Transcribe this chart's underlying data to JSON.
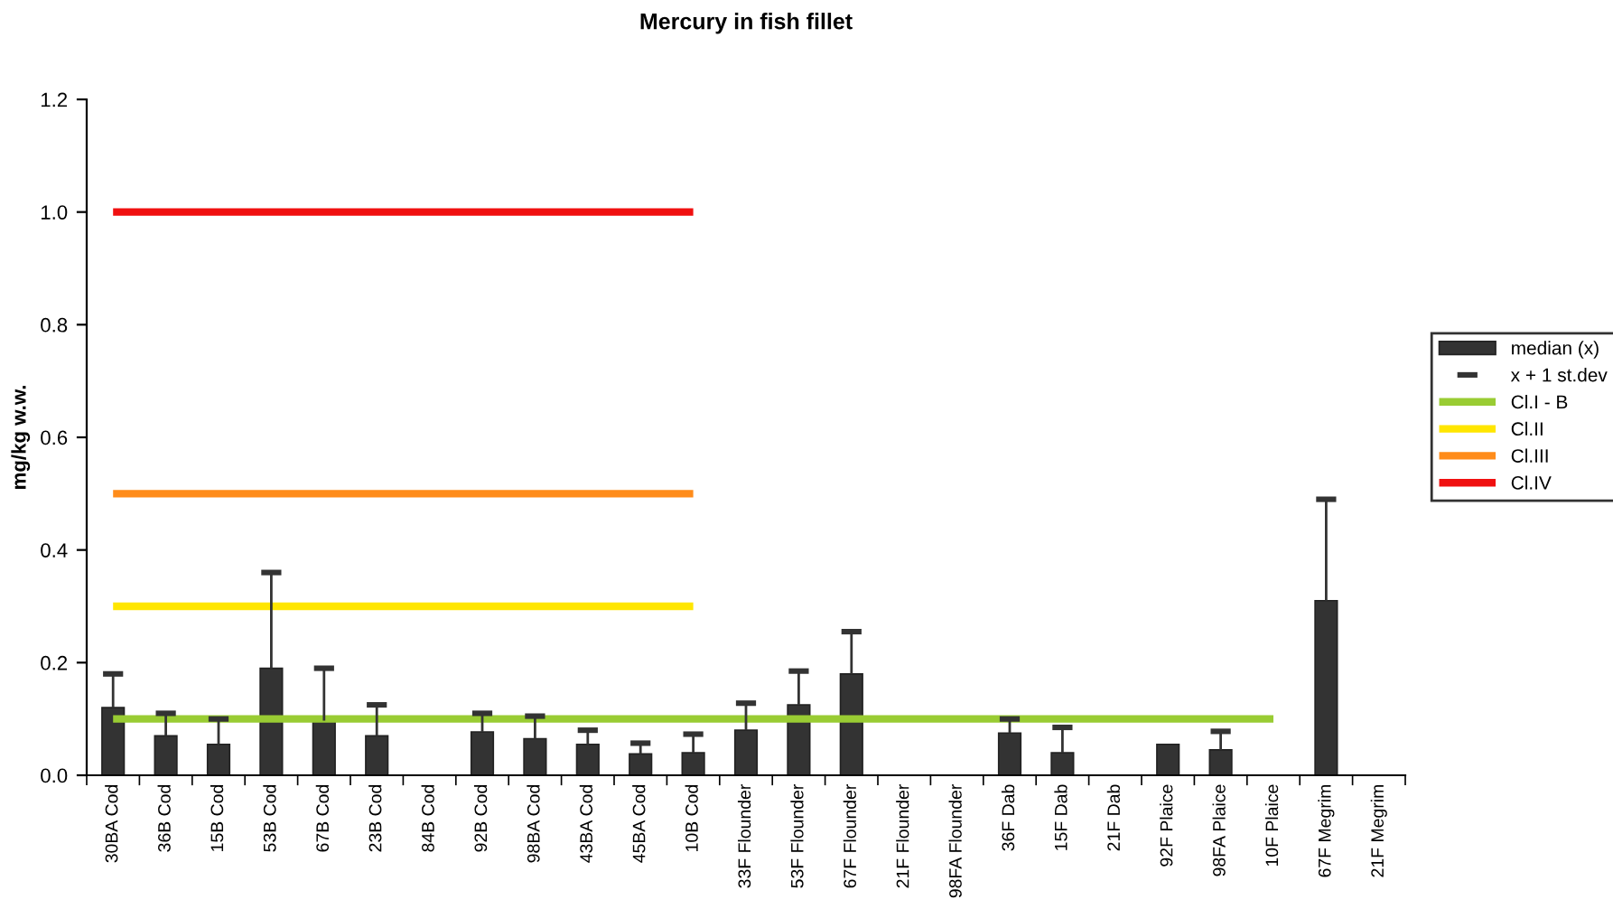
{
  "chart_data": {
    "type": "bar",
    "title": "Mercury in fish fillet",
    "ylabel": "mg/kg w.w.",
    "categories": [
      "30BA Cod",
      "36B Cod",
      "15B Cod",
      "53B Cod",
      "67B Cod",
      "23B Cod",
      "84B Cod",
      "92B Cod",
      "98BA Cod",
      "43BA Cod",
      "45BA Cod",
      "10B Cod",
      "33F Flounder",
      "53F Flounder",
      "67F Flounder",
      "21F Flounder",
      "98FA Flounder",
      "36F Dab",
      "15F Dab",
      "21F Dab",
      "92F Plaice",
      "98FA Plaice",
      "10F Plaice",
      "67F Megrim",
      "21F Megrim"
    ],
    "series": [
      {
        "name": "median (x)",
        "color": "#333333",
        "values": [
          0.12,
          0.07,
          0.055,
          0.19,
          0.097,
          0.07,
          null,
          0.077,
          0.065,
          0.055,
          0.038,
          0.04,
          0.08,
          0.125,
          0.18,
          null,
          null,
          0.075,
          0.04,
          null,
          0.055,
          0.045,
          null,
          0.31,
          null
        ],
        "errors": [
          [
            0.12,
            0.18
          ],
          [
            0.07,
            0.11
          ],
          [
            0.055,
            0.1
          ],
          [
            0.19,
            0.36
          ],
          [
            0.097,
            0.19
          ],
          [
            0.07,
            0.125
          ],
          null,
          [
            0.077,
            0.11
          ],
          [
            0.065,
            0.105
          ],
          [
            0.055,
            0.08
          ],
          [
            0.038,
            0.057
          ],
          [
            0.04,
            0.073
          ],
          [
            0.08,
            0.128
          ],
          [
            0.125,
            0.185
          ],
          [
            0.18,
            0.255
          ],
          null,
          null,
          [
            0.075,
            0.1
          ],
          [
            0.04,
            0.085
          ],
          null,
          null,
          [
            0.045,
            0.078
          ],
          null,
          [
            0.31,
            0.49
          ],
          null
        ]
      },
      {
        "name": "Cl.I - B",
        "type": "line",
        "color": "#99cc33",
        "values": [
          0.1,
          0.1,
          0.1,
          0.1,
          0.1,
          0.1,
          0.1,
          0.1,
          0.1,
          0.1,
          0.1,
          0.1,
          0.1,
          0.1,
          0.1,
          0.1,
          0.1,
          0.1,
          0.1,
          0.1,
          0.1,
          0.1,
          0.1,
          null,
          null
        ]
      },
      {
        "name": "Cl.II",
        "type": "line",
        "color": "#ffe600",
        "values": [
          0.3,
          0.3,
          0.3,
          0.3,
          0.3,
          0.3,
          0.3,
          0.3,
          0.3,
          0.3,
          0.3,
          0.3,
          null,
          null,
          null,
          null,
          null,
          null,
          null,
          null,
          null,
          null,
          null,
          null,
          null
        ]
      },
      {
        "name": "Cl.III",
        "type": "line",
        "color": "#ff8c1a",
        "values": [
          0.5,
          0.5,
          0.5,
          0.5,
          0.5,
          0.5,
          0.5,
          0.5,
          0.5,
          0.5,
          0.5,
          0.5,
          null,
          null,
          null,
          null,
          null,
          null,
          null,
          null,
          null,
          null,
          null,
          null,
          null
        ]
      },
      {
        "name": "Cl.IV",
        "type": "line",
        "color": "#f01010",
        "values": [
          1.0,
          1.0,
          1.0,
          1.0,
          1.0,
          1.0,
          1.0,
          1.0,
          1.0,
          1.0,
          1.0,
          1.0,
          null,
          null,
          null,
          null,
          null,
          null,
          null,
          null,
          null,
          null,
          null,
          null,
          null
        ]
      }
    ],
    "ylim": [
      0,
      1.2
    ],
    "yticks": [
      {
        "value": 0,
        "label": "0.0"
      },
      {
        "value": 0.2,
        "label": "0.2"
      },
      {
        "value": 0.4,
        "label": "0.4"
      },
      {
        "value": 0.6,
        "label": "0.6"
      },
      {
        "value": 0.8,
        "label": "0.8"
      },
      {
        "value": 1.0,
        "label": "1.0"
      },
      {
        "value": 1.2,
        "label": "1.2"
      }
    ],
    "annotations": [
      "x + 1 st.dev"
    ],
    "grid": false,
    "legend": "right"
  }
}
